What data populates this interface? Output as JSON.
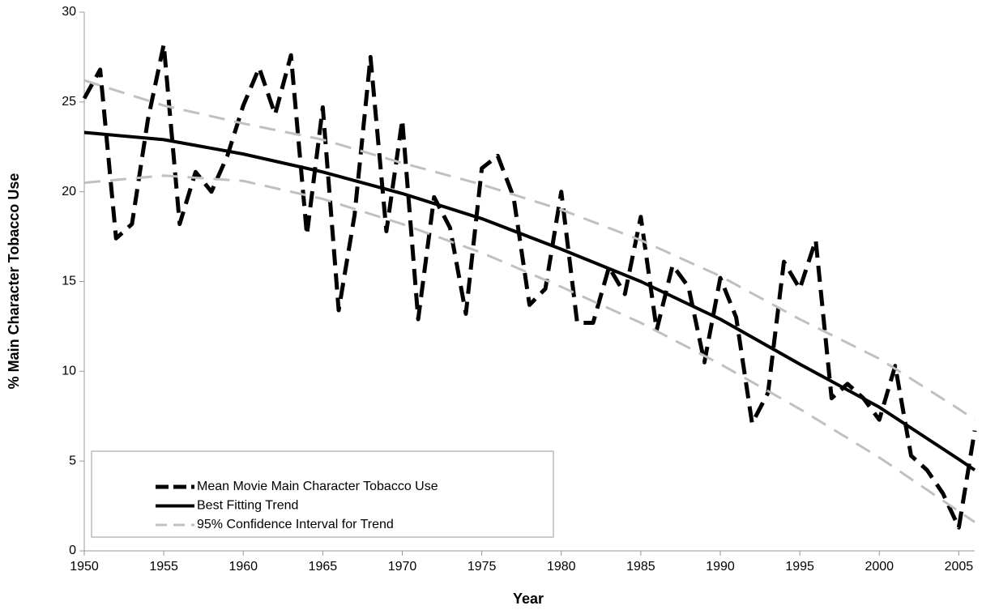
{
  "chart_data": {
    "type": "line",
    "xlabel": "Year",
    "ylabel": "% Main Character Tobacco Use",
    "xlim": [
      1950,
      2006
    ],
    "xticks": [
      1950,
      1955,
      1960,
      1965,
      1970,
      1975,
      1980,
      1985,
      1990,
      1995,
      2000,
      2005
    ],
    "ylim": [
      0,
      30
    ],
    "yticks": [
      0,
      5,
      10,
      15,
      20,
      25,
      30
    ],
    "legend": "bottom-left",
    "x": [
      1950,
      1951,
      1952,
      1953,
      1954,
      1955,
      1956,
      1957,
      1958,
      1959,
      1960,
      1961,
      1962,
      1963,
      1964,
      1965,
      1966,
      1967,
      1968,
      1969,
      1970,
      1971,
      1972,
      1973,
      1974,
      1975,
      1976,
      1977,
      1978,
      1979,
      1980,
      1981,
      1982,
      1983,
      1984,
      1985,
      1986,
      1987,
      1988,
      1989,
      1990,
      1991,
      1992,
      1993,
      1994,
      1995,
      1996,
      1997,
      1998,
      1999,
      2000,
      2001,
      2002,
      2003,
      2004,
      2005,
      2006
    ],
    "series": [
      {
        "name": "Mean Movie Main Character Tobacco Use",
        "color": "#000000",
        "style": "dashed",
        "values": [
          25.2,
          26.8,
          17.4,
          18.2,
          24.0,
          28.2,
          18.2,
          21.1,
          20.0,
          22.0,
          24.8,
          26.9,
          24.3,
          27.6,
          17.6,
          24.7,
          13.4,
          18.7,
          27.5,
          17.8,
          24.0,
          12.9,
          19.7,
          18.0,
          13.2,
          21.3,
          22.0,
          19.7,
          13.7,
          14.6,
          20.0,
          12.7,
          12.7,
          15.8,
          14.3,
          18.6,
          12.3,
          15.9,
          14.7,
          10.5,
          15.2,
          13.0,
          7.1,
          8.8,
          16.1,
          14.6,
          17.3,
          8.5,
          9.3,
          8.5,
          7.3,
          10.3,
          5.3,
          4.5,
          3.2,
          1.3,
          6.7
        ]
      },
      {
        "name": "Best Fitting Trend",
        "color": "#000000",
        "style": "solid",
        "x": [
          1950,
          1955,
          1960,
          1965,
          1970,
          1975,
          1980,
          1985,
          1990,
          1995,
          2000,
          2005,
          2006
        ],
        "values": [
          23.3,
          22.9,
          22.1,
          21.1,
          19.9,
          18.5,
          16.8,
          15.0,
          12.9,
          10.4,
          8.0,
          5.1,
          4.5
        ]
      },
      {
        "name": "95% Confidence Interval for Trend",
        "color": "#c0c0c0",
        "style": "dashed",
        "x": [
          1950,
          1955,
          1960,
          1965,
          1970,
          1975,
          1980,
          1985,
          1990,
          1995,
          2000,
          2005,
          2006
        ],
        "upper": [
          26.2,
          24.8,
          23.8,
          22.9,
          21.6,
          20.4,
          19.0,
          17.3,
          15.3,
          12.9,
          10.7,
          7.9,
          7.3
        ],
        "lower": [
          20.5,
          20.9,
          20.6,
          19.6,
          18.2,
          16.6,
          14.7,
          12.7,
          10.4,
          7.9,
          5.2,
          2.2,
          1.6
        ]
      }
    ]
  }
}
